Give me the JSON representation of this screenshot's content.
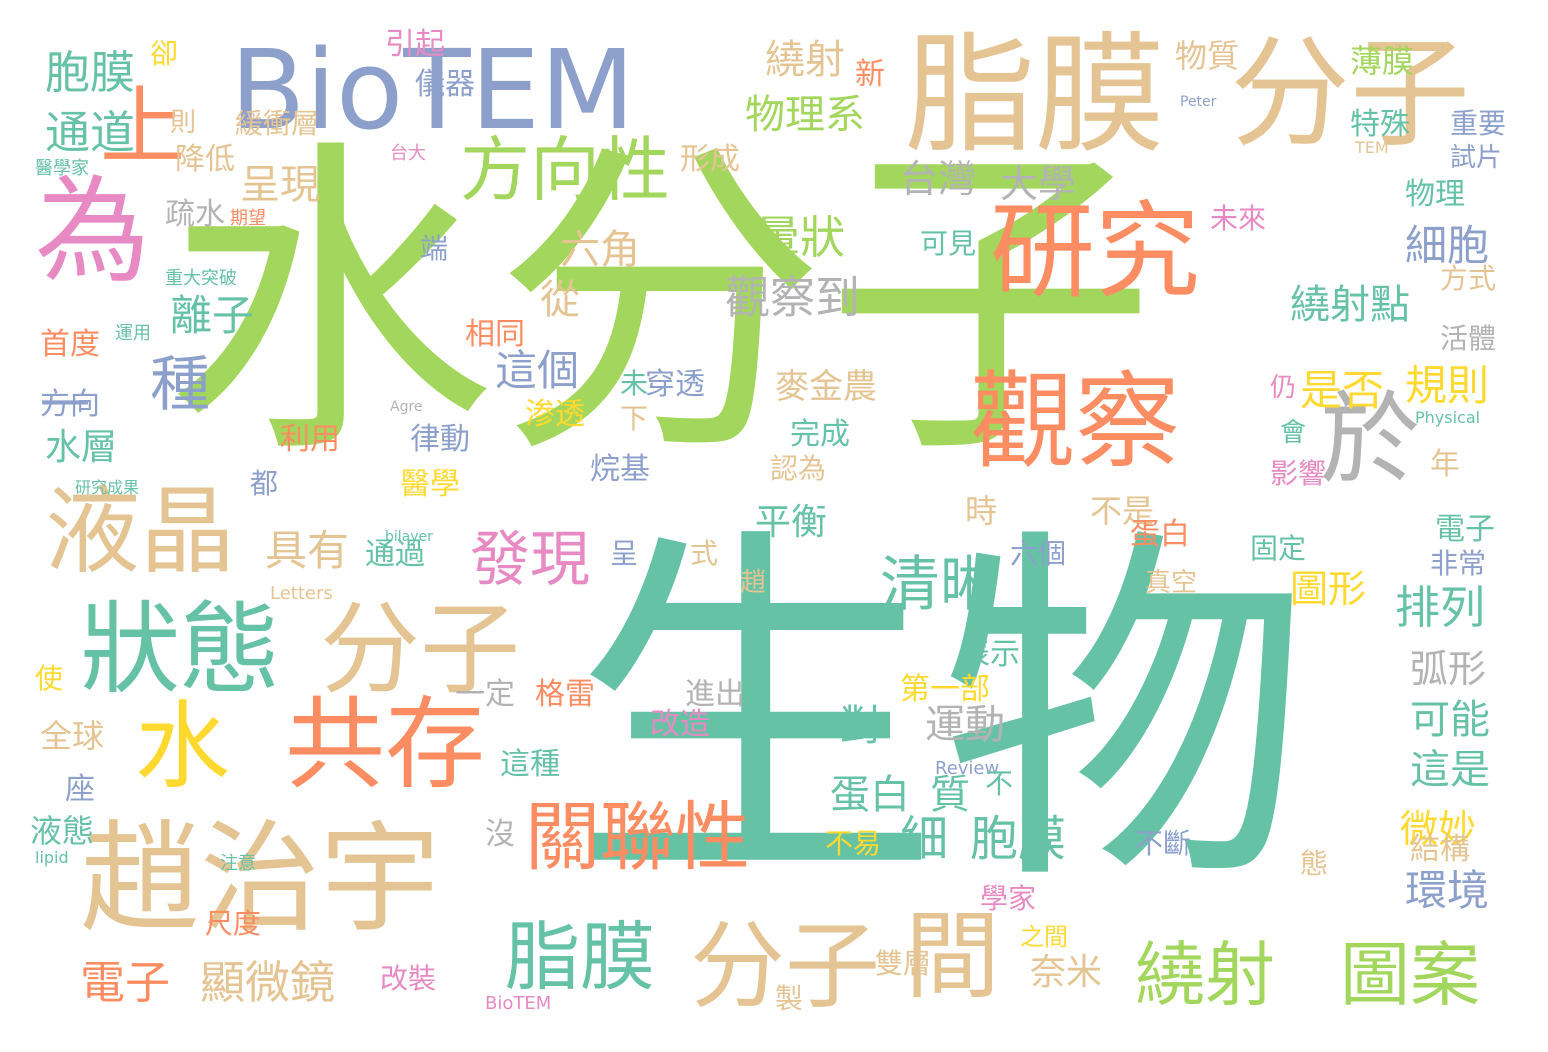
{
  "palette": {
    "green": "#a3d65c",
    "teal": "#66c2a5",
    "tan": "#e5c494",
    "orange": "#fc8d62",
    "blue": "#8da0cb",
    "pink": "#e78ac3",
    "gray": "#b3b3b3",
    "yellow": "#ffd92f"
  },
  "words": [
    {
      "text": "水分子",
      "color": "green"
    },
    {
      "text": "生物",
      "color": "teal"
    },
    {
      "text": "BioTEM",
      "color": "blue"
    },
    {
      "text": "脂膜",
      "color": "tan"
    },
    {
      "text": "分子",
      "color": "tan"
    },
    {
      "text": "為",
      "color": "pink"
    },
    {
      "text": "上",
      "color": "orange"
    },
    {
      "text": "研究",
      "color": "orange"
    },
    {
      "text": "觀察",
      "color": "orange"
    },
    {
      "text": "方向性",
      "color": "green"
    },
    {
      "text": "於",
      "color": "gray"
    },
    {
      "text": "液晶",
      "color": "tan"
    },
    {
      "text": "狀態",
      "color": "teal"
    },
    {
      "text": "分子",
      "color": "tan"
    },
    {
      "text": "水",
      "color": "yellow"
    },
    {
      "text": "共存",
      "color": "orange"
    },
    {
      "text": "趙治宇",
      "color": "tan"
    },
    {
      "text": "關聯性",
      "color": "orange"
    },
    {
      "text": "脂膜",
      "color": "teal"
    },
    {
      "text": "分子",
      "color": "tan"
    },
    {
      "text": "間",
      "color": "tan"
    },
    {
      "text": "繞射",
      "color": "green"
    },
    {
      "text": "圖案",
      "color": "green"
    },
    {
      "text": "發現",
      "color": "pink"
    },
    {
      "text": "清晰",
      "color": "teal"
    },
    {
      "text": "種",
      "color": "blue"
    },
    {
      "text": "一",
      "color": "blue"
    },
    {
      "text": "胞膜",
      "color": "teal"
    },
    {
      "text": "通道",
      "color": "teal"
    },
    {
      "text": "繞射",
      "color": "tan"
    },
    {
      "text": "物理系",
      "color": "green"
    },
    {
      "text": "物質",
      "color": "tan"
    },
    {
      "text": "薄膜",
      "color": "green"
    },
    {
      "text": "台灣",
      "color": "gray"
    },
    {
      "text": "大學",
      "color": "gray"
    },
    {
      "text": "暈狀",
      "color": "green"
    },
    {
      "text": "觀察到",
      "color": "gray"
    },
    {
      "text": "細胞",
      "color": "blue"
    },
    {
      "text": "繞射點",
      "color": "teal"
    },
    {
      "text": "是否",
      "color": "yellow"
    },
    {
      "text": "規則",
      "color": "yellow"
    },
    {
      "text": "離子",
      "color": "teal"
    },
    {
      "text": "六角",
      "color": "tan"
    },
    {
      "text": "呈現",
      "color": "tan"
    },
    {
      "text": "從",
      "color": "tan"
    },
    {
      "text": "這個",
      "color": "blue"
    },
    {
      "text": "具有",
      "color": "tan"
    },
    {
      "text": "平衡",
      "color": "teal"
    },
    {
      "text": "排列",
      "color": "teal"
    },
    {
      "text": "圖形",
      "color": "yellow"
    },
    {
      "text": "細",
      "color": "teal"
    },
    {
      "text": "胞膜",
      "color": "teal"
    },
    {
      "text": "蛋白",
      "color": "teal"
    },
    {
      "text": "質",
      "color": "teal"
    },
    {
      "text": "運動",
      "color": "gray"
    },
    {
      "text": "對",
      "color": "teal"
    },
    {
      "text": "電子",
      "color": "orange"
    },
    {
      "text": "顯微鏡",
      "color": "tan"
    },
    {
      "text": "奈米",
      "color": "tan"
    },
    {
      "text": "環境",
      "color": "blue"
    },
    {
      "text": "弧形",
      "color": "gray"
    },
    {
      "text": "可能",
      "color": "teal"
    },
    {
      "text": "這是",
      "color": "teal"
    },
    {
      "text": "微妙",
      "color": "yellow"
    },
    {
      "text": "結構",
      "color": "tan"
    },
    {
      "text": "水層",
      "color": "teal"
    },
    {
      "text": "方向",
      "color": "blue"
    },
    {
      "text": "液態",
      "color": "teal"
    },
    {
      "text": "全球",
      "color": "tan"
    },
    {
      "text": "首度",
      "color": "orange"
    },
    {
      "text": "降低",
      "color": "tan"
    },
    {
      "text": "緩衝層",
      "color": "tan"
    },
    {
      "text": "疏水",
      "color": "gray"
    },
    {
      "text": "儀器",
      "color": "blue"
    },
    {
      "text": "引起",
      "color": "pink"
    },
    {
      "text": "新",
      "color": "orange"
    },
    {
      "text": "形成",
      "color": "tan"
    },
    {
      "text": "特殊",
      "color": "teal"
    },
    {
      "text": "重要",
      "color": "blue"
    },
    {
      "text": "試片",
      "color": "blue"
    },
    {
      "text": "物理",
      "color": "teal"
    },
    {
      "text": "未來",
      "color": "pink"
    },
    {
      "text": "方式",
      "color": "tan"
    },
    {
      "text": "活體",
      "color": "gray"
    },
    {
      "text": "相同",
      "color": "orange"
    },
    {
      "text": "穿透",
      "color": "blue"
    },
    {
      "text": "麥金農",
      "color": "tan"
    },
    {
      "text": "渗透",
      "color": "yellow"
    },
    {
      "text": "完成",
      "color": "teal"
    },
    {
      "text": "認為",
      "color": "tan"
    },
    {
      "text": "烷基",
      "color": "blue"
    },
    {
      "text": "律動",
      "color": "blue"
    },
    {
      "text": "醫學",
      "color": "yellow"
    },
    {
      "text": "利用",
      "color": "orange"
    },
    {
      "text": "通過",
      "color": "teal"
    },
    {
      "text": "不是",
      "color": "tan"
    },
    {
      "text": "時",
      "color": "tan"
    },
    {
      "text": "六個",
      "color": "blue"
    },
    {
      "text": "蛋白",
      "color": "orange"
    },
    {
      "text": "固定",
      "color": "teal"
    },
    {
      "text": "電子",
      "color": "teal"
    },
    {
      "text": "非常",
      "color": "blue"
    },
    {
      "text": "影響",
      "color": "pink"
    },
    {
      "text": "表示",
      "color": "teal"
    },
    {
      "text": "第一部",
      "color": "yellow"
    },
    {
      "text": "進出",
      "color": "gray"
    },
    {
      "text": "改造",
      "color": "pink"
    },
    {
      "text": "格雷",
      "color": "orange"
    },
    {
      "text": "一定",
      "color": "gray"
    },
    {
      "text": "這種",
      "color": "teal"
    },
    {
      "text": "不易",
      "color": "yellow"
    },
    {
      "text": "不斷",
      "color": "blue"
    },
    {
      "text": "學家",
      "color": "pink"
    },
    {
      "text": "雙層",
      "color": "tan"
    },
    {
      "text": "改裝",
      "color": "pink"
    },
    {
      "text": "尺度",
      "color": "orange"
    },
    {
      "text": "注意",
      "color": "teal"
    },
    {
      "text": "台大",
      "color": "pink"
    },
    {
      "text": "期望",
      "color": "orange"
    },
    {
      "text": "醫學家",
      "color": "teal"
    },
    {
      "text": "重大突破",
      "color": "teal"
    },
    {
      "text": "運用",
      "color": "teal"
    },
    {
      "text": "研究成果",
      "color": "teal"
    },
    {
      "text": "Agre",
      "color": "gray"
    },
    {
      "text": "Physical",
      "color": "teal"
    },
    {
      "text": "Review",
      "color": "blue"
    },
    {
      "text": "Letters",
      "color": "tan"
    },
    {
      "text": "BioTEM",
      "color": "pink"
    },
    {
      "text": "lipid",
      "color": "teal"
    },
    {
      "text": "bilayer",
      "color": "teal"
    },
    {
      "text": "Peter",
      "color": "blue"
    },
    {
      "text": "TEM",
      "color": "tan"
    },
    {
      "text": "卻",
      "color": "yellow"
    },
    {
      "text": "則",
      "color": "tan"
    },
    {
      "text": "座",
      "color": "blue"
    },
    {
      "text": "使",
      "color": "yellow"
    },
    {
      "text": "都",
      "color": "blue"
    },
    {
      "text": "沒",
      "color": "gray"
    },
    {
      "text": "未",
      "color": "teal"
    },
    {
      "text": "下",
      "color": "tan"
    },
    {
      "text": "呈",
      "color": "blue"
    },
    {
      "text": "式",
      "color": "tan"
    },
    {
      "text": "趙",
      "color": "tan"
    },
    {
      "text": "不",
      "color": "teal"
    },
    {
      "text": "仍",
      "color": "pink"
    },
    {
      "text": "會",
      "color": "teal"
    },
    {
      "text": "年",
      "color": "tan"
    },
    {
      "text": "態",
      "color": "tan"
    },
    {
      "text": "端",
      "color": "blue"
    },
    {
      "text": "製",
      "color": "tan"
    },
    {
      "text": "之間",
      "color": "yellow"
    },
    {
      "text": "真空",
      "color": "tan"
    },
    {
      "text": "可見",
      "color": "teal"
    }
  ]
}
